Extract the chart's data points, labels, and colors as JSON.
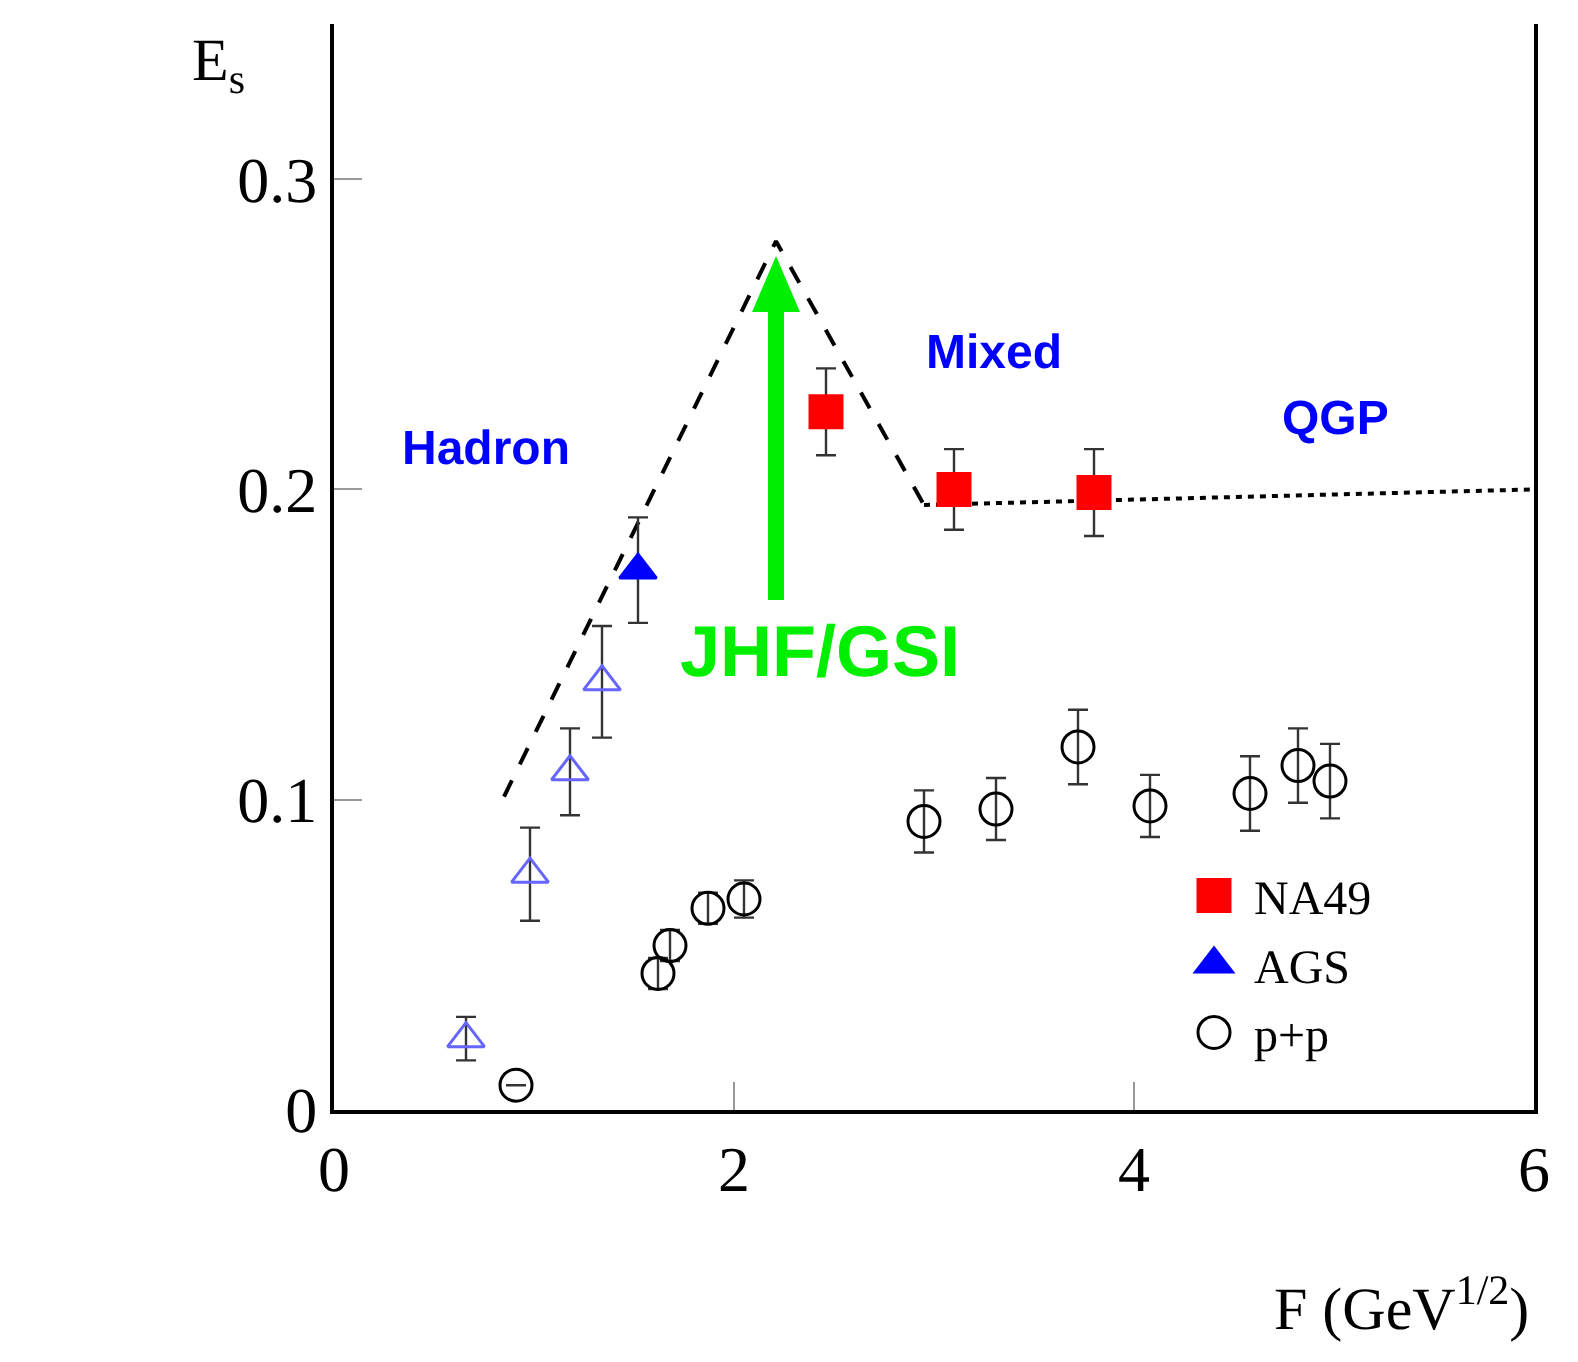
{
  "chart_data": {
    "type": "scatter",
    "xlabel": "F (GeV$^{1/2}$)",
    "ylabel": "E$_{s}$",
    "xlim": [
      0,
      6
    ],
    "xticks": [
      0,
      2,
      4,
      6
    ],
    "ylim": [
      0,
      0.35
    ],
    "yticks": [
      0,
      0.1,
      0.2,
      0.3
    ],
    "grid": false,
    "legend": "bottom right",
    "series": [
      {
        "type": "line",
        "line_style": "dashed",
        "color": "#000000",
        "x": [
          0.85,
          2.21,
          2.95
        ],
        "values": [
          0.101,
          0.28,
          0.195
        ]
      },
      {
        "type": "line",
        "line_style": "dotted",
        "color": "#000000",
        "x": [
          2.95,
          6
        ],
        "values": [
          0.195,
          0.2
        ]
      },
      {
        "name": "NA49",
        "marker": "square",
        "color": "#ff0000",
        "x": [
          2.46,
          3.1,
          3.8
        ],
        "values": [
          0.225,
          0.2,
          0.199
        ],
        "errors": [
          0.014,
          0.013,
          0.014
        ]
      },
      {
        "name": "AGS",
        "marker": "triangle",
        "color": "#0000ff",
        "x": [
          1.52
        ],
        "values": [
          0.174
        ],
        "errors": [
          0.017
        ]
      },
      {
        "marker": "triangle-open",
        "color": "#6666ff",
        "x": [
          0.66,
          0.98,
          1.18,
          1.34
        ],
        "values": [
          0.023,
          0.076,
          0.109,
          0.138
        ],
        "errors": [
          0.007,
          0.015,
          0.014,
          0.018
        ]
      },
      {
        "name": "p+p",
        "marker": "circle-open",
        "color": "#000000",
        "x": [
          0.91,
          1.62,
          1.68,
          1.87,
          2.05,
          2.95,
          3.31,
          3.72,
          4.08,
          4.58,
          4.82,
          4.98
        ],
        "values": [
          0.008,
          0.044,
          0.053,
          0.065,
          0.068,
          0.093,
          0.097,
          0.117,
          0.098,
          0.102,
          0.111,
          0.106
        ],
        "errors": [
          null,
          0.005,
          0.005,
          0.005,
          0.006,
          0.01,
          0.01,
          0.012,
          0.01,
          0.012,
          0.012,
          0.012
        ]
      }
    ],
    "annotations": [
      "Hadron",
      "Mixed",
      "QGP",
      "JHF/GSI"
    ]
  }
}
